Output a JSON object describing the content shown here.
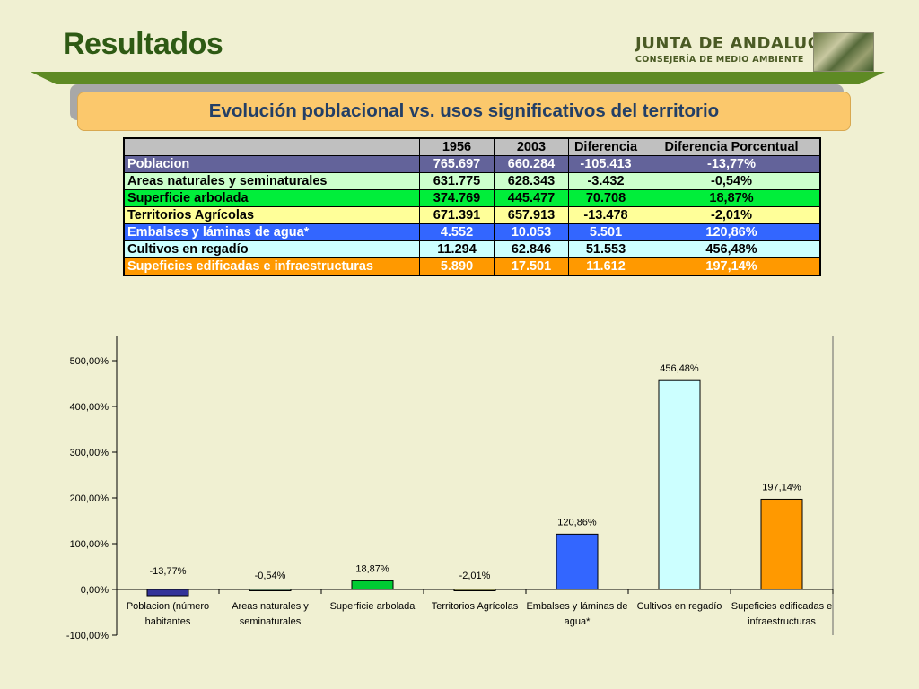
{
  "header": {
    "title": "Resultados",
    "logo_line1": "JUNTA DE ANDALUCIA",
    "logo_line2": "CONSEJERÍA DE MEDIO AMBIENTE"
  },
  "banner": {
    "text": "Evolución poblacional vs. usos significativos del territorio"
  },
  "table": {
    "headers": [
      "",
      "1956",
      "2003",
      "Diferencia",
      "Diferencia Porcentual"
    ],
    "rows": [
      [
        "Poblacion",
        "765.697",
        "660.284",
        "-105.413",
        "-13,77%"
      ],
      [
        "Areas naturales y seminaturales",
        "631.775",
        "628.343",
        "-3.432",
        "-0,54%"
      ],
      [
        "Superficie arbolada",
        "374.769",
        "445.477",
        "70.708",
        "18,87%"
      ],
      [
        "Territorios Agrícolas",
        "671.391",
        "657.913",
        "-13.478",
        "-2,01%"
      ],
      [
        "Embalses y láminas de agua*",
        "4.552",
        "10.053",
        "5.501",
        "120,86%"
      ],
      [
        "Cultivos en regadío",
        "11.294",
        "62.846",
        "51.553",
        "456,48%"
      ],
      [
        "Supeficies edificadas e infraestructuras",
        "5.890",
        "17.501",
        "11.612",
        "197,14%"
      ]
    ],
    "row_colors": [
      "#63639a",
      "#ccffcc",
      "#00ee3a",
      "#ffff99",
      "#3366ff",
      "#ccffff",
      "#ff9900"
    ]
  },
  "chart_data": {
    "type": "bar",
    "categories": [
      [
        "Poblacion (número",
        "habitantes"
      ],
      [
        "Areas naturales y",
        "seminaturales"
      ],
      [
        "Superficie arbolada"
      ],
      [
        "Territorios Agrícolas"
      ],
      [
        "Embalses y láminas de",
        "agua*"
      ],
      [
        "Cultivos en regadío"
      ],
      [
        "Supeficies edificadas e",
        "infraestructuras"
      ]
    ],
    "values": [
      -13.77,
      -0.54,
      18.87,
      -2.01,
      120.86,
      456.48,
      197.14
    ],
    "data_labels": [
      "-13,77%",
      "-0,54%",
      "18,87%",
      "-2,01%",
      "120,86%",
      "456,48%",
      "197,14%"
    ],
    "colors": [
      "#333399",
      "#ccffcc",
      "#00cc33",
      "#ffff99",
      "#3366ff",
      "#ccffff",
      "#ff9900"
    ],
    "ylim": [
      -100,
      500
    ],
    "yticks": [
      -100,
      0,
      100,
      200,
      300,
      400,
      500
    ],
    "ytick_labels": [
      "-100,00%",
      "0,00%",
      "100,00%",
      "200,00%",
      "300,00%",
      "400,00%",
      "500,00%"
    ],
    "legend": "none",
    "grid": false
  }
}
